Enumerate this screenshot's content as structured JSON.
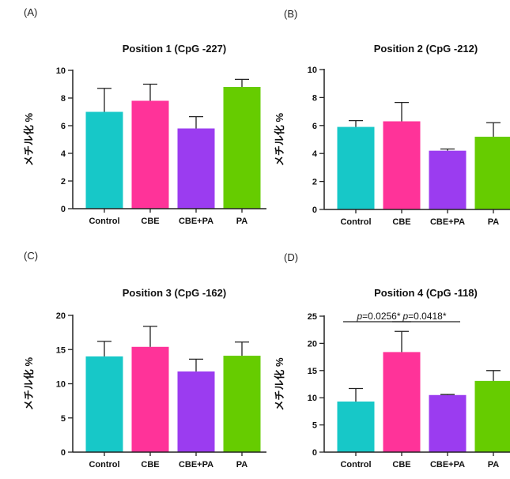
{
  "figure": {
    "ylabel": "メチル化 %",
    "colors": {
      "Control": "#17c8c8",
      "CBE": "#ff3399",
      "CBE+PA": "#9b3cf0",
      "PA": "#66cc00"
    }
  },
  "chart_data": [
    {
      "panel": "(A)",
      "type": "bar",
      "title": "Position 1 (CpG -227)",
      "xlabel": "",
      "ylabel": "メチル化 %",
      "categories": [
        "Control",
        "CBE",
        "CBE+PA",
        "PA"
      ],
      "values": [
        7.0,
        7.8,
        5.8,
        8.8
      ],
      "errors": [
        1.7,
        1.2,
        0.85,
        0.55
      ],
      "ylim": [
        0,
        10
      ],
      "yticks": [
        0,
        2,
        4,
        6,
        8,
        10
      ],
      "annotations": []
    },
    {
      "panel": "(B)",
      "type": "bar",
      "title": "Position 2 (CpG -212)",
      "xlabel": "",
      "ylabel": "メチル化 %",
      "categories": [
        "Control",
        "CBE",
        "CBE+PA",
        "PA"
      ],
      "values": [
        5.9,
        6.3,
        4.2,
        5.2
      ],
      "errors": [
        0.45,
        1.35,
        0.12,
        1.0
      ],
      "ylim": [
        0,
        10
      ],
      "yticks": [
        0,
        2,
        4,
        6,
        8,
        10
      ],
      "annotations": []
    },
    {
      "panel": "(C)",
      "type": "bar",
      "title": "Position 3 (CpG -162)",
      "xlabel": "",
      "ylabel": "メチル化 %",
      "categories": [
        "Control",
        "CBE",
        "CBE+PA",
        "PA"
      ],
      "values": [
        14.0,
        15.4,
        11.8,
        14.1
      ],
      "errors": [
        2.2,
        3.0,
        1.8,
        2.0
      ],
      "ylim": [
        0,
        20
      ],
      "yticks": [
        0,
        5,
        10,
        15,
        20
      ],
      "annotations": []
    },
    {
      "panel": "(D)",
      "type": "bar",
      "title": "Position 4 (CpG -118)",
      "xlabel": "",
      "ylabel": "メチル化 %",
      "categories": [
        "Control",
        "CBE",
        "CBE+PA",
        "PA"
      ],
      "values": [
        9.3,
        18.4,
        10.5,
        13.1
      ],
      "errors": [
        2.4,
        3.8,
        0.1,
        1.9
      ],
      "ylim": [
        0,
        25
      ],
      "yticks": [
        0,
        5,
        10,
        15,
        20,
        25
      ],
      "annotations": [
        {
          "from": 0,
          "to": 1,
          "italic": "p",
          "text": "=0.0256*"
        },
        {
          "from": 1,
          "to": 2,
          "italic": "p",
          "text": "=0.0418*"
        }
      ]
    }
  ]
}
